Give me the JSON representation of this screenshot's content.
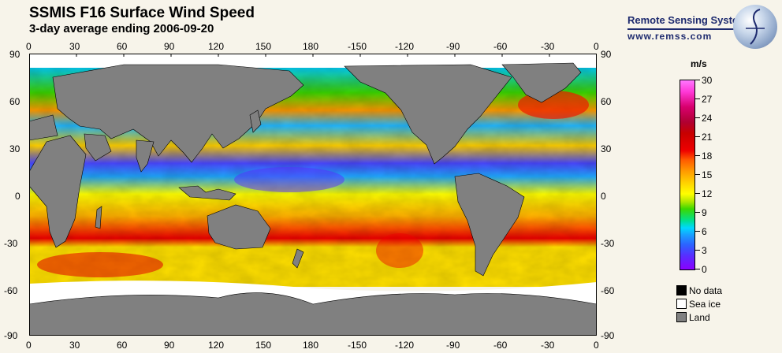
{
  "title": "SSMIS F16 Surface Wind Speed",
  "subtitle": "3-day average ending 2006-09-20",
  "logo": {
    "name": "Remote Sensing Systems",
    "url": "www.remss.com"
  },
  "map": {
    "projection": "equirectangular",
    "lon_range": [
      0,
      360
    ],
    "lat_range": [
      -90,
      90
    ],
    "lon_ticks": [
      "0",
      "30",
      "60",
      "90",
      "120",
      "150",
      "180",
      "-150",
      "-120",
      "-90",
      "-60",
      "-30",
      "0"
    ],
    "lat_ticks": [
      "90",
      "60",
      "30",
      "0",
      "-30",
      "-60",
      "-90"
    ],
    "land_color": "#808080",
    "sea_ice_color": "#ffffff",
    "no_data_color": "#000000"
  },
  "colorbar": {
    "unit": "m/s",
    "min": 0,
    "max": 30,
    "ticks": [
      "30",
      "27",
      "24",
      "21",
      "18",
      "15",
      "12",
      "9",
      "6",
      "3",
      "0"
    ]
  },
  "legend": [
    {
      "label": "No data",
      "color": "#000000"
    },
    {
      "label": "Sea ice",
      "color": "#ffffff"
    },
    {
      "label": "Land",
      "color": "#808080"
    }
  ]
}
